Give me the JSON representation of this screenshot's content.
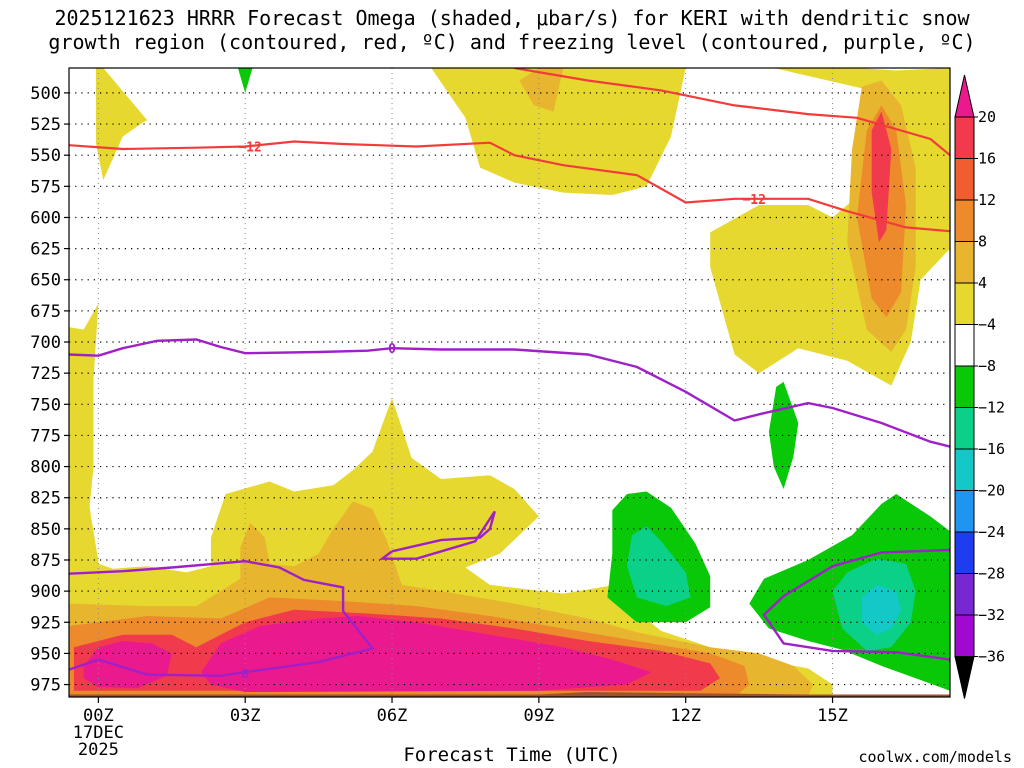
{
  "title_line1": "2025121623 HRRR Forecast Omega (shaded, μbar/s) for KERI with dendritic snow",
  "title_line2": "growth region (contoured, red, ºC) and freezing level (contoured, purple, ºC)",
  "credit": "coolwx.com/models",
  "colors": {
    "y4": "#e6d82e",
    "y8": "#e8b52f",
    "o12": "#ec8a2c",
    "o16": "#f05d2e",
    "r20": "#f23a4d",
    "m": "#ea1a8e",
    "g4": "#08c808",
    "g8": "#0ad088",
    "g12": "#14c8c8",
    "b16": "#1e96f0",
    "b20": "#1e3cf0",
    "p24": "#7828d2",
    "p28": "#a00ad0",
    "grey": "#a0a0a0",
    "black": "#000000",
    "snow": "#f23c3c",
    "freeze": "#a020c8",
    "ground": "#a0522d"
  },
  "chart_data": {
    "type": "heatmap",
    "title": "2025121623 HRRR Forecast Omega (shaded, μbar/s) for KERI with dendritic snow growth region (contoured, red, ºC) and freezing level (contoured, purple, ºC)",
    "xlabel": "Forecast Time (UTC)",
    "ylabel": "",
    "x_ticks": [
      "00Z",
      "03Z",
      "06Z",
      "09Z",
      "12Z",
      "15Z"
    ],
    "x_tick_hours": [
      0,
      3,
      6,
      9,
      12,
      15
    ],
    "date_label": [
      "17DEC",
      "2025"
    ],
    "xlim_hours": [
      -0.6,
      17.4
    ],
    "y_ticks": [
      500,
      525,
      550,
      575,
      600,
      625,
      650,
      675,
      700,
      725,
      750,
      775,
      800,
      825,
      850,
      875,
      900,
      925,
      950,
      975
    ],
    "ylim": [
      480,
      985
    ],
    "colorbar_levels": [
      20,
      16,
      12,
      8,
      4,
      -4,
      -8,
      -12,
      -16,
      -20,
      -24,
      -28,
      -32,
      -36
    ],
    "colorbar_labels": [
      "20",
      "16",
      "12",
      "8",
      "4",
      "−4",
      "−8",
      "−12",
      "−16",
      "−20",
      "−24",
      "−28",
      "−32",
      "−36"
    ],
    "contour_labels": {
      "snow": "−12",
      "freeze": "0"
    },
    "snow_line_segments": [
      [
        [
          -0.6,
          542
        ],
        [
          0.5,
          545
        ],
        [
          2.0,
          544
        ],
        [
          3.0,
          543
        ],
        [
          4.0,
          539
        ],
        [
          5.0,
          541
        ],
        [
          6.5,
          543
        ],
        [
          8.0,
          540
        ],
        [
          8.5,
          550
        ],
        [
          9.5,
          558
        ],
        [
          11.0,
          566
        ],
        [
          12.0,
          588
        ],
        [
          13.0,
          585
        ],
        [
          14.5,
          585
        ],
        [
          15.3,
          595
        ],
        [
          16.5,
          608
        ],
        [
          17.4,
          611
        ]
      ],
      [
        [
          8.5,
          480
        ],
        [
          10.0,
          490
        ],
        [
          11.5,
          498
        ],
        [
          13.0,
          510
        ],
        [
          14.5,
          517
        ],
        [
          15.5,
          520
        ],
        [
          17.0,
          537
        ],
        [
          17.4,
          550
        ]
      ]
    ],
    "freeze_line_segments": [
      [
        [
          -0.6,
          710
        ],
        [
          0.0,
          711
        ],
        [
          0.5,
          705
        ],
        [
          1.2,
          699
        ],
        [
          2.0,
          698
        ],
        [
          2.5,
          704
        ],
        [
          3.0,
          709
        ],
        [
          4.5,
          708
        ],
        [
          5.5,
          707
        ],
        [
          6.0,
          705
        ],
        [
          7.0,
          706
        ],
        [
          8.5,
          706
        ],
        [
          10.0,
          710
        ],
        [
          11.0,
          720
        ],
        [
          12.0,
          740
        ],
        [
          13.0,
          763
        ],
        [
          13.5,
          758
        ],
        [
          14.5,
          749
        ],
        [
          15.0,
          753
        ],
        [
          16.0,
          765
        ],
        [
          17.0,
          780
        ],
        [
          17.4,
          784
        ]
      ],
      [
        [
          -0.6,
          886
        ],
        [
          0.5,
          884
        ],
        [
          1.5,
          881
        ],
        [
          3.0,
          876
        ],
        [
          3.7,
          881
        ],
        [
          4.2,
          891
        ],
        [
          5.0,
          897
        ],
        [
          5.0,
          916
        ],
        [
          5.6,
          946
        ],
        [
          4.5,
          957
        ],
        [
          3.0,
          965
        ],
        [
          2.5,
          968
        ],
        [
          1.0,
          967
        ],
        [
          0.0,
          955
        ],
        [
          -0.6,
          963
        ]
      ],
      [
        [
          6.0,
          868
        ],
        [
          7.0,
          859
        ],
        [
          7.8,
          857
        ],
        [
          8.0,
          850
        ],
        [
          8.1,
          836
        ],
        [
          8.0,
          842
        ],
        [
          7.7,
          860
        ],
        [
          6.5,
          874
        ],
        [
          5.8,
          874
        ],
        [
          6.0,
          868
        ]
      ],
      [
        [
          17.4,
          867
        ],
        [
          16.0,
          869
        ],
        [
          15.0,
          880
        ],
        [
          14.0,
          904
        ],
        [
          13.6,
          919
        ],
        [
          14.0,
          942
        ],
        [
          15.0,
          948
        ],
        [
          16.3,
          949
        ],
        [
          17.4,
          955
        ]
      ]
    ]
  }
}
